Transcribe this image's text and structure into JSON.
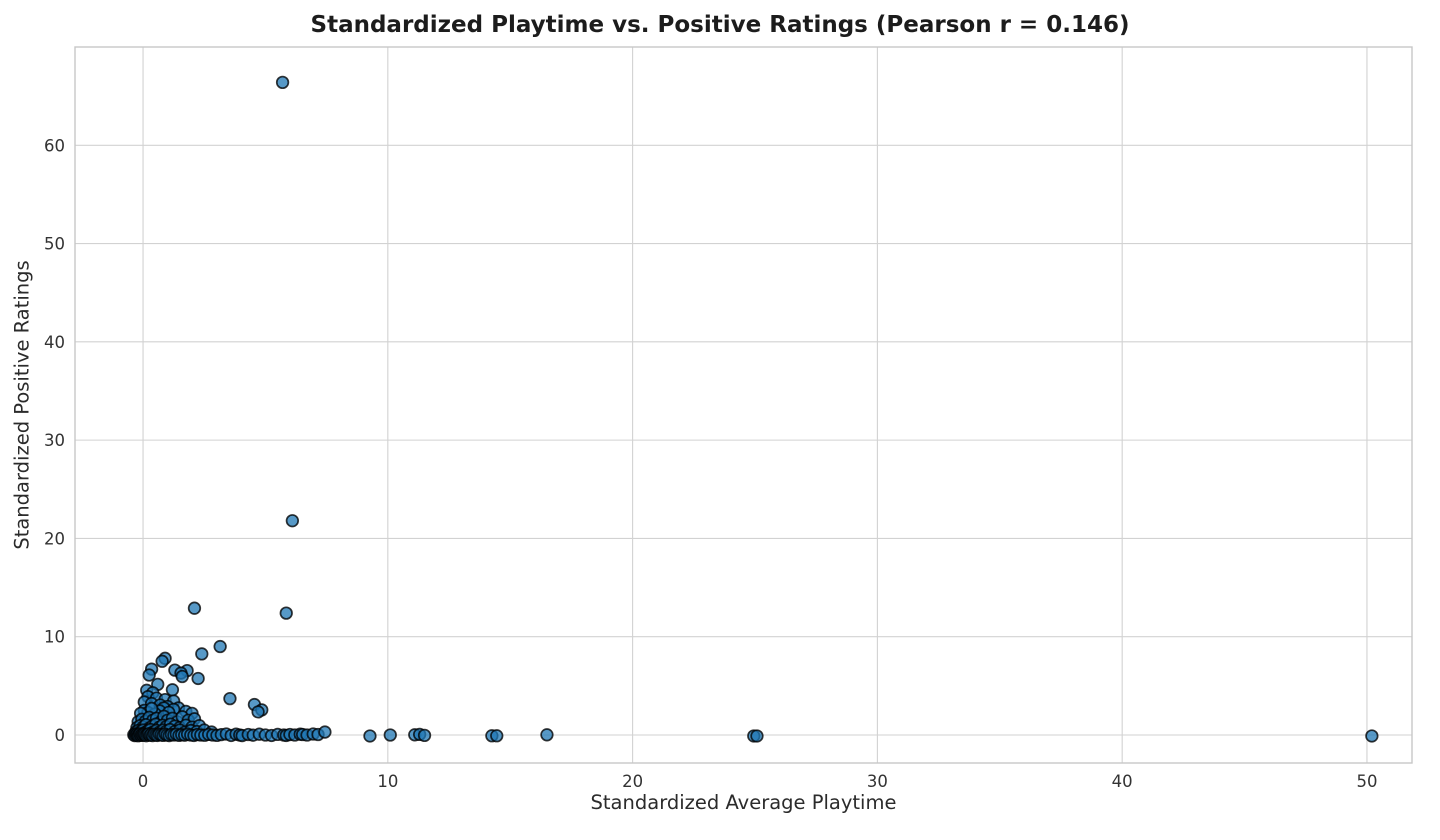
{
  "title": "Standardized Playtime vs. Positive Ratings (Pearson r = 0.146)",
  "chart_data": {
    "type": "scatter",
    "title": "Standardized Playtime vs. Positive Ratings (Pearson r = 0.146)",
    "xlabel": "Standardized Average Playtime",
    "ylabel": "Standardized Positive Ratings",
    "xlim": [
      -2.78,
      51.84
    ],
    "ylim": [
      -2.85,
      70.0
    ],
    "x_ticks": [
      0,
      10,
      20,
      30,
      40,
      50
    ],
    "y_ticks": [
      0,
      10,
      20,
      30,
      40,
      50,
      60
    ],
    "grid": true,
    "legend": false,
    "pearson_r": 0.146,
    "marker": {
      "fill": "#1f77b4",
      "fill_opacity": 0.75,
      "edge": "#000000",
      "edge_opacity": 0.78,
      "radius": 5.8,
      "edge_width": 1.7
    },
    "colors": {
      "grid": "#d2d2d2",
      "frame": "#c7c7c7",
      "tick_text": "#333333",
      "text": "#2b2b2b"
    },
    "points": [
      [
        5.7,
        66.4
      ],
      [
        6.1,
        21.8
      ],
      [
        2.1,
        12.9
      ],
      [
        5.85,
        12.4
      ],
      [
        3.15,
        9.0
      ],
      [
        2.4,
        8.25
      ],
      [
        0.9,
        7.8
      ],
      [
        0.78,
        7.5
      ],
      [
        0.35,
        6.7
      ],
      [
        1.8,
        6.55
      ],
      [
        1.3,
        6.6
      ],
      [
        1.55,
        6.3
      ],
      [
        0.25,
        6.1
      ],
      [
        1.6,
        5.95
      ],
      [
        2.25,
        5.75
      ],
      [
        0.6,
        5.15
      ],
      [
        1.2,
        4.6
      ],
      [
        0.15,
        4.55
      ],
      [
        0.4,
        4.3
      ],
      [
        0.2,
        3.9
      ],
      [
        0.55,
        3.75
      ],
      [
        3.55,
        3.7
      ],
      [
        0.9,
        3.6
      ],
      [
        1.25,
        3.45
      ],
      [
        0.05,
        3.35
      ],
      [
        0.35,
        3.2
      ],
      [
        4.55,
        3.1
      ],
      [
        0.7,
        3.05
      ],
      [
        1.0,
        2.9
      ],
      [
        1.45,
        2.75
      ],
      [
        0.85,
        2.75
      ],
      [
        1.25,
        2.6
      ],
      [
        4.85,
        2.55
      ],
      [
        0.05,
        2.5
      ],
      [
        0.68,
        2.45
      ],
      [
        1.75,
        2.4
      ],
      [
        4.7,
        2.35
      ],
      [
        0.2,
        2.3
      ],
      [
        1.05,
        2.3
      ],
      [
        -0.1,
        2.2
      ],
      [
        2.0,
        2.2
      ],
      [
        0.5,
        2.15
      ],
      [
        0.35,
        2.7
      ],
      [
        -0.2,
        1.35
      ],
      [
        -0.05,
        1.6
      ],
      [
        0.1,
        1.4
      ],
      [
        0.25,
        1.8
      ],
      [
        0.4,
        1.5
      ],
      [
        0.55,
        1.7
      ],
      [
        0.7,
        1.3
      ],
      [
        0.85,
        1.9
      ],
      [
        1.0,
        1.5
      ],
      [
        1.2,
        1.7
      ],
      [
        1.4,
        1.35
      ],
      [
        1.6,
        1.85
      ],
      [
        1.85,
        1.5
      ],
      [
        2.1,
        1.65
      ],
      [
        -0.25,
        0.75
      ],
      [
        -0.12,
        0.95
      ],
      [
        0.0,
        0.8
      ],
      [
        0.12,
        1.05
      ],
      [
        0.25,
        0.7
      ],
      [
        0.38,
        0.9
      ],
      [
        0.52,
        1.1
      ],
      [
        0.66,
        0.78
      ],
      [
        0.8,
        1.0
      ],
      [
        0.95,
        0.85
      ],
      [
        1.12,
        1.1
      ],
      [
        1.3,
        0.9
      ],
      [
        1.5,
        0.75
      ],
      [
        1.75,
        1.0
      ],
      [
        2.0,
        0.8
      ],
      [
        2.3,
        0.95
      ],
      [
        -0.3,
        0.3
      ],
      [
        -0.2,
        0.45
      ],
      [
        -0.1,
        0.35
      ],
      [
        0.0,
        0.5
      ],
      [
        0.1,
        0.28
      ],
      [
        0.2,
        0.42
      ],
      [
        0.3,
        0.55
      ],
      [
        0.42,
        0.32
      ],
      [
        0.55,
        0.48
      ],
      [
        0.68,
        0.3
      ],
      [
        0.82,
        0.5
      ],
      [
        0.95,
        0.38
      ],
      [
        1.1,
        0.55
      ],
      [
        1.3,
        0.35
      ],
      [
        1.5,
        0.5
      ],
      [
        1.72,
        0.3
      ],
      [
        1.95,
        0.45
      ],
      [
        2.2,
        0.35
      ],
      [
        2.5,
        0.5
      ],
      [
        2.8,
        0.3
      ],
      [
        -0.38,
        0.02
      ],
      [
        -0.34,
        -0.06
      ],
      [
        -0.3,
        0.1
      ],
      [
        -0.27,
        -0.02
      ],
      [
        -0.23,
        0.06
      ],
      [
        -0.2,
        -0.08
      ],
      [
        -0.16,
        0.03
      ],
      [
        -0.12,
        0.12
      ],
      [
        -0.08,
        -0.04
      ],
      [
        -0.04,
        0.07
      ],
      [
        0.0,
        -0.02
      ],
      [
        0.04,
        0.1
      ],
      [
        0.08,
        0.0
      ],
      [
        0.13,
        -0.07
      ],
      [
        0.18,
        0.05
      ],
      [
        0.23,
        0.12
      ],
      [
        0.28,
        -0.03
      ],
      [
        0.33,
        0.06
      ],
      [
        0.39,
        -0.06
      ],
      [
        0.45,
        0.09
      ],
      [
        0.52,
        0.0
      ],
      [
        0.59,
        -0.05
      ],
      [
        0.66,
        0.08
      ],
      [
        0.74,
        0.02
      ],
      [
        0.82,
        -0.04
      ],
      [
        0.9,
        0.1
      ],
      [
        0.98,
        0.0
      ],
      [
        1.07,
        -0.06
      ],
      [
        1.16,
        0.05
      ],
      [
        1.26,
        0.0
      ],
      [
        1.36,
        0.08
      ],
      [
        1.47,
        -0.04
      ],
      [
        1.58,
        0.03
      ],
      [
        1.7,
        -0.02
      ],
      [
        1.82,
        0.08
      ],
      [
        1.95,
        0.0
      ],
      [
        2.08,
        -0.05
      ],
      [
        2.22,
        0.05
      ],
      [
        2.36,
        0.0
      ],
      [
        2.52,
        -0.03
      ],
      [
        2.68,
        0.06
      ],
      [
        2.85,
        0.0
      ],
      [
        3.02,
        -0.04
      ],
      [
        3.2,
        0.04
      ],
      [
        3.4,
        0.1
      ],
      [
        3.6,
        -0.05
      ],
      [
        3.8,
        0.08
      ],
      [
        3.95,
        0.0
      ],
      [
        4.05,
        -0.06
      ],
      [
        4.3,
        0.05
      ],
      [
        4.5,
        -0.02
      ],
      [
        4.75,
        0.08
      ],
      [
        5.0,
        0.0
      ],
      [
        5.25,
        -0.05
      ],
      [
        5.5,
        0.06
      ],
      [
        5.75,
        0.0
      ],
      [
        5.85,
        -0.05
      ],
      [
        6.0,
        0.05
      ],
      [
        6.2,
        0.0
      ],
      [
        6.42,
        0.08
      ],
      [
        6.52,
        0.05
      ],
      [
        6.7,
        0.0
      ],
      [
        6.95,
        0.1
      ],
      [
        7.15,
        0.05
      ],
      [
        7.43,
        0.3
      ],
      [
        9.27,
        -0.1
      ],
      [
        10.1,
        0.0
      ],
      [
        11.1,
        0.02
      ],
      [
        11.3,
        0.06
      ],
      [
        11.5,
        -0.04
      ],
      [
        14.25,
        -0.08
      ],
      [
        14.45,
        -0.08
      ],
      [
        16.5,
        0.02
      ],
      [
        24.95,
        -0.1
      ],
      [
        25.08,
        -0.1
      ],
      [
        50.2,
        -0.1
      ]
    ]
  }
}
